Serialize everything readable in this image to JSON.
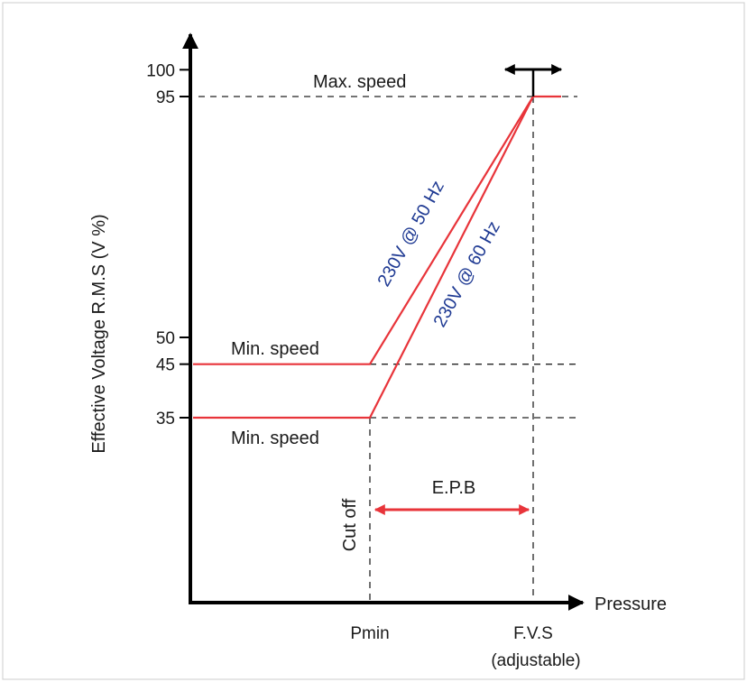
{
  "chart_data": {
    "type": "line",
    "title": "",
    "xlabel": "Pressure",
    "ylabel": "Effective Voltage R.M.S (V %)",
    "yticks": [
      100,
      95,
      50,
      45,
      35
    ],
    "ylim": [
      0,
      100
    ],
    "xticks": [
      {
        "key": "pmin",
        "label": "Pmin"
      },
      {
        "key": "fvs",
        "label": "F.V.S",
        "sublabel": "(adjustable)"
      }
    ],
    "series": [
      {
        "name": "230V @ 50 Hz",
        "points": [
          [
            "start",
            45
          ],
          [
            "pmin",
            45
          ],
          [
            "fvs",
            95
          ],
          [
            "end",
            95
          ]
        ]
      },
      {
        "name": "230V @ 60 Hz",
        "points": [
          [
            "start",
            35
          ],
          [
            "pmin",
            35
          ],
          [
            "fvs",
            95
          ]
        ]
      }
    ],
    "annotations": {
      "max_speed": "Max. speed",
      "min_speed_upper": "Min. speed",
      "min_speed_lower": "Min. speed",
      "cut_off": "Cut off",
      "epb": "E.P.B"
    },
    "colors": {
      "series": "#e8343a",
      "axis": "#000000",
      "label_blue": "#1f3a93"
    },
    "grid": false
  }
}
